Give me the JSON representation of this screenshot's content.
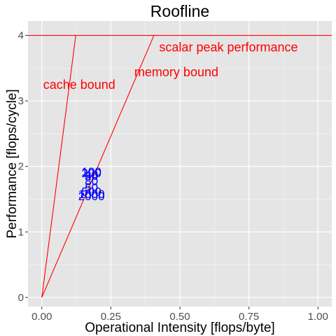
{
  "chart_data": {
    "type": "scatter",
    "title": "Roofline",
    "xlabel": "Operational Intensity [flops/byte]",
    "ylabel": "Performance [flops/cycle]",
    "xlim": [
      -0.05,
      1.05
    ],
    "ylim": [
      -0.14,
      4.22
    ],
    "x_ticks": [
      0,
      0.25,
      0.5,
      0.75,
      1
    ],
    "x_tick_labels": [
      "0.00",
      "0.25",
      "0.50",
      "0.75",
      "1.00"
    ],
    "y_ticks": [
      0,
      1,
      2,
      3,
      4
    ],
    "y_tick_labels": [
      "0",
      "1",
      "2",
      "3",
      "4"
    ],
    "grid": true,
    "colors": {
      "panel": "#e5e5e5",
      "grid": "#ffffff",
      "line": "#ff0000",
      "points": "#0000ff"
    },
    "lines": [
      {
        "name": "scalar peak performance",
        "x": [
          -0.05,
          1.05
        ],
        "y": [
          4,
          4
        ]
      },
      {
        "name": "cache bound",
        "x": [
          0,
          0.123
        ],
        "y": [
          0,
          4
        ]
      },
      {
        "name": "memory bound",
        "x": [
          0,
          0.406
        ],
        "y": [
          0,
          4
        ]
      }
    ],
    "annotations": [
      {
        "text": "scalar peak performance",
        "x": 0.42,
        "y": 3.82
      },
      {
        "text": "memory bound",
        "x": 0.33,
        "y": 3.44
      },
      {
        "text": "cache bound",
        "x": 0.0,
        "y": 3.25
      }
    ],
    "points": [
      {
        "label": "100",
        "x": 0.2,
        "y": 1.92
      },
      {
        "label": "200",
        "x": 0.2,
        "y": 1.9
      },
      {
        "label": "40",
        "x": 0.2,
        "y": 1.88
      },
      {
        "label": "30",
        "x": 0.2,
        "y": 1.86
      },
      {
        "label": "80",
        "x": 0.2,
        "y": 1.78
      },
      {
        "label": "500",
        "x": 0.2,
        "y": 1.62
      },
      {
        "label": "50",
        "x": 0.2,
        "y": 1.68
      },
      {
        "label": "1000",
        "x": 0.2,
        "y": 1.58
      },
      {
        "label": "2000",
        "x": 0.2,
        "y": 1.55
      }
    ]
  }
}
